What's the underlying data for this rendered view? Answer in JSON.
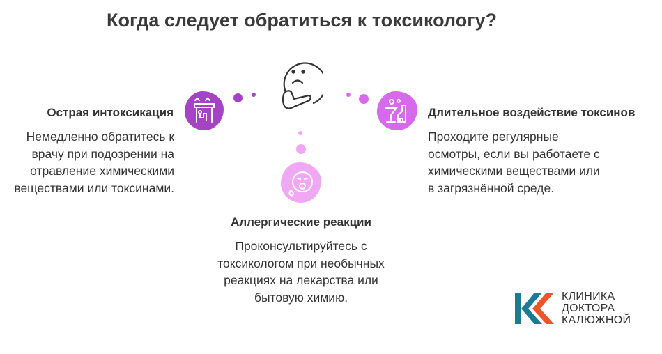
{
  "title": "Когда следует обратиться к токсикологу?",
  "center_icon": "thinking-face-icon",
  "items": [
    {
      "heading": "Острая интоксикация",
      "text": "Немедленно обратитесь к врачу при подозрении на отравление химическими веществами или токсинами.",
      "icon": "poisoning-icon",
      "color": "#a444c4"
    },
    {
      "heading": "Аллергические реакции",
      "text": "Проконсультируйтесь с токсикологом при необычных реакциях на лекарства или бытовую химию.",
      "icon": "sick-face-icon",
      "color": "#f0a8f4"
    },
    {
      "heading": "Длительное воздействие токсинов",
      "text": "Проходите регулярные осмотры, если вы работаете с химическими веществами или в загрязнённой среде.",
      "icon": "factory-chemicals-icon",
      "color": "#d56aec"
    }
  ],
  "logo": {
    "line1": "КЛИНИКА",
    "line2": "ДОКТОРА",
    "line3": "КАЛЮЖНОЙ",
    "colors": {
      "teal": "#1b7a94",
      "orange": "#f0552a"
    }
  }
}
